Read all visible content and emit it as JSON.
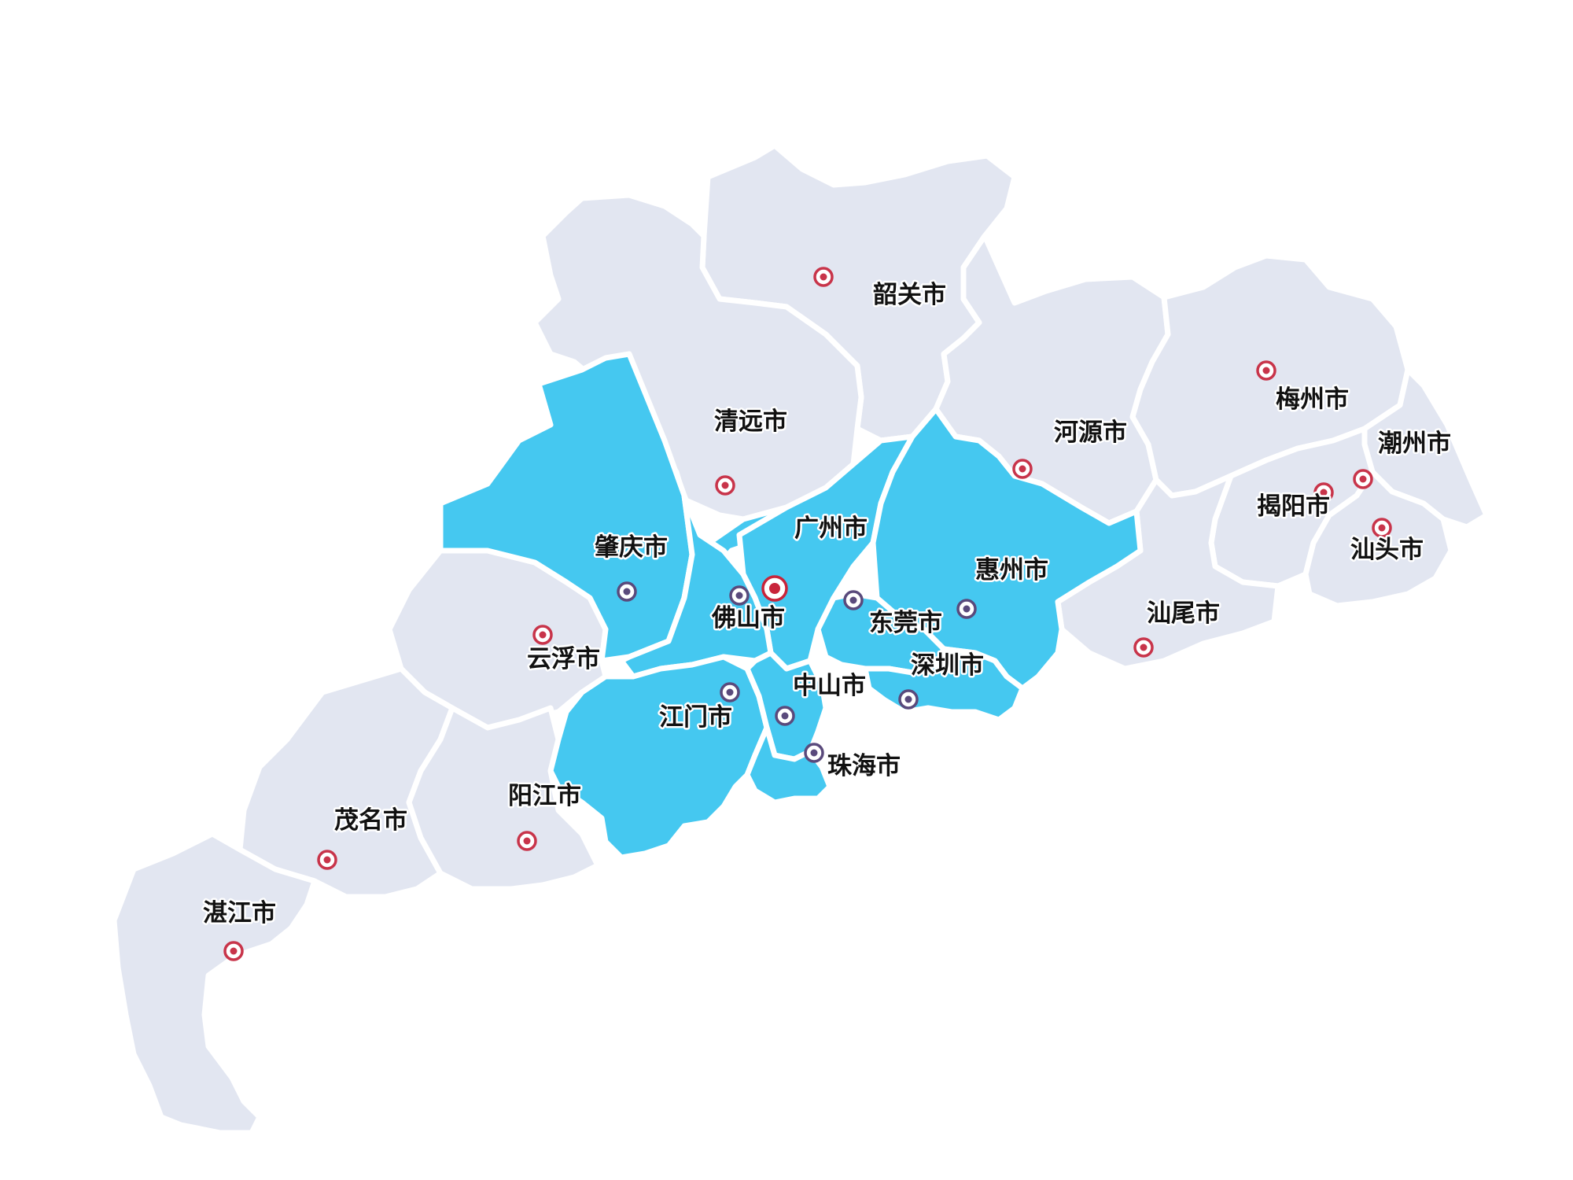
{
  "colors": {
    "region_default": "#e2e6f1",
    "region_highlight": "#45c8f0",
    "border": "#ffffff",
    "marker_red": "#c8344a",
    "marker_purple": "#5a4a7c",
    "marker_capital": "#c8243a"
  },
  "cities": [
    {
      "id": "shaoguan",
      "name": "韶关市",
      "highlighted": false,
      "marker": "red"
    },
    {
      "id": "qingyuan",
      "name": "清远市",
      "highlighted": false,
      "marker": "red"
    },
    {
      "id": "heyuan",
      "name": "河源市",
      "highlighted": false,
      "marker": "red"
    },
    {
      "id": "meizhou",
      "name": "梅州市",
      "highlighted": false,
      "marker": "red"
    },
    {
      "id": "chaozhou",
      "name": "潮州市",
      "highlighted": false,
      "marker": "red"
    },
    {
      "id": "jieyang",
      "name": "揭阳市",
      "highlighted": false,
      "marker": "red"
    },
    {
      "id": "shantou",
      "name": "汕头市",
      "highlighted": false,
      "marker": "red"
    },
    {
      "id": "shanwei",
      "name": "汕尾市",
      "highlighted": false,
      "marker": "red"
    },
    {
      "id": "zhaoqing",
      "name": "肇庆市",
      "highlighted": true,
      "marker": "purple"
    },
    {
      "id": "guangzhou",
      "name": "广州市",
      "highlighted": true,
      "marker": "capital"
    },
    {
      "id": "foshan",
      "name": "佛山市",
      "highlighted": true,
      "marker": "purple"
    },
    {
      "id": "huizhou",
      "name": "惠州市",
      "highlighted": true,
      "marker": "purple"
    },
    {
      "id": "dongguan",
      "name": "东莞市",
      "highlighted": true,
      "marker": "purple"
    },
    {
      "id": "shenzhen",
      "name": "深圳市",
      "highlighted": true,
      "marker": "purple"
    },
    {
      "id": "zhongshan",
      "name": "中山市",
      "highlighted": true,
      "marker": "purple"
    },
    {
      "id": "jiangmen",
      "name": "江门市",
      "highlighted": true,
      "marker": "purple"
    },
    {
      "id": "zhuhai",
      "name": "珠海市",
      "highlighted": true,
      "marker": "purple"
    },
    {
      "id": "yunfu",
      "name": "云浮市",
      "highlighted": false,
      "marker": "red"
    },
    {
      "id": "yangjiang",
      "name": "阳江市",
      "highlighted": false,
      "marker": "red"
    },
    {
      "id": "maoming",
      "name": "茂名市",
      "highlighted": false,
      "marker": "red"
    },
    {
      "id": "zhanjiang",
      "name": "湛江市",
      "highlighted": false,
      "marker": "red"
    }
  ]
}
